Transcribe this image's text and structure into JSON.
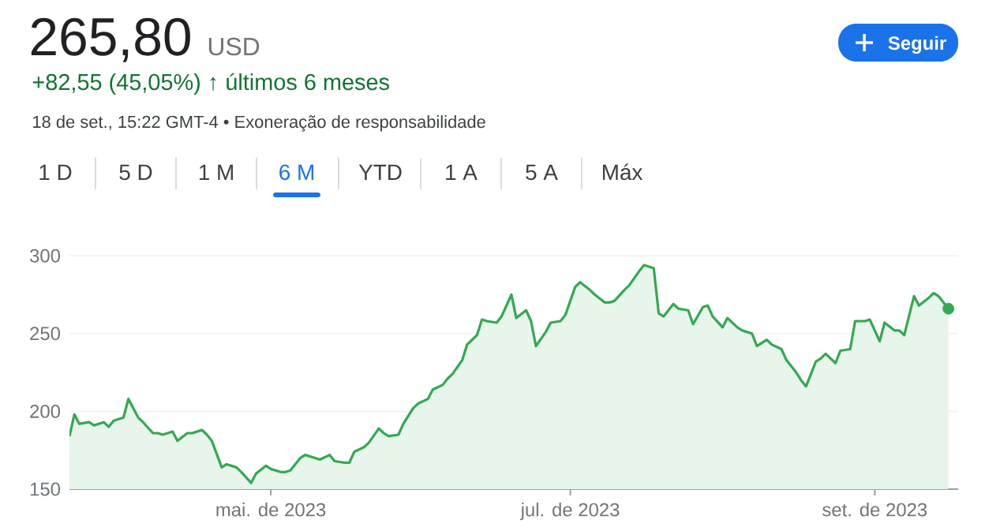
{
  "chart_data": {
    "type": "area",
    "title": "265,80",
    "subtitle": "+82,55 (45,05%) ↑ últimos 6 meses",
    "annotations": [
      "USD",
      "18 de set., 15:22 GMT-4 • Exoneração de responsabilidade",
      "Seguir",
      "1 D",
      "5 D",
      "1 M",
      "6 M",
      "YTD",
      "1 A",
      "5 A",
      "Máx"
    ],
    "xlim": [
      "2023-03-21",
      "2023-09-18"
    ],
    "xticks": [
      {
        "value": "2023-05-01",
        "label": "mai. de 2023"
      },
      {
        "value": "2023-07-01",
        "label": "jul. de 2023"
      },
      {
        "value": "2023-09-01",
        "label": "set. de 2023"
      }
    ],
    "ylim": [
      150,
      300
    ],
    "yticks": [
      150,
      200,
      250,
      300
    ],
    "grid": "y",
    "series": [
      {
        "color": "#34a853",
        "x": [
          "2023-03-21",
          "2023-03-22",
          "2023-03-23",
          "2023-03-25",
          "2023-03-26",
          "2023-03-28",
          "2023-03-29",
          "2023-03-30",
          "2023-04-01",
          "2023-04-02",
          "2023-04-04",
          "2023-04-05",
          "2023-04-07",
          "2023-04-08",
          "2023-04-09",
          "2023-04-11",
          "2023-04-12",
          "2023-04-14",
          "2023-04-15",
          "2023-04-17",
          "2023-04-18",
          "2023-04-19",
          "2023-04-21",
          "2023-04-22",
          "2023-04-24",
          "2023-04-25",
          "2023-04-27",
          "2023-04-28",
          "2023-04-30",
          "2023-05-01",
          "2023-05-03",
          "2023-05-04",
          "2023-05-05",
          "2023-05-07",
          "2023-05-08",
          "2023-05-10",
          "2023-05-11",
          "2023-05-13",
          "2023-05-14",
          "2023-05-16",
          "2023-05-17",
          "2023-05-18",
          "2023-05-20",
          "2023-05-21",
          "2023-05-23",
          "2023-05-24",
          "2023-05-25",
          "2023-05-27",
          "2023-05-28",
          "2023-05-30",
          "2023-05-31",
          "2023-06-02",
          "2023-06-03",
          "2023-06-05",
          "2023-06-06",
          "2023-06-07",
          "2023-06-09",
          "2023-06-10",
          "2023-06-12",
          "2023-06-13",
          "2023-06-14",
          "2023-06-16",
          "2023-06-17",
          "2023-06-19",
          "2023-06-20",
          "2023-06-22",
          "2023-06-23",
          "2023-06-24",
          "2023-06-26",
          "2023-06-27",
          "2023-06-29",
          "2023-06-30",
          "2023-07-02",
          "2023-07-03",
          "2023-07-05",
          "2023-07-06",
          "2023-07-08",
          "2023-07-09",
          "2023-07-10",
          "2023-07-12",
          "2023-07-13",
          "2023-07-15",
          "2023-07-16",
          "2023-07-18",
          "2023-07-19",
          "2023-07-20",
          "2023-07-22",
          "2023-07-23",
          "2023-07-25",
          "2023-07-26",
          "2023-07-28",
          "2023-07-29",
          "2023-07-30",
          "2023-08-01",
          "2023-08-02",
          "2023-08-04",
          "2023-08-05",
          "2023-08-07",
          "2023-08-08",
          "2023-08-10",
          "2023-08-11",
          "2023-08-13",
          "2023-08-14",
          "2023-08-16",
          "2023-08-17",
          "2023-08-18",
          "2023-08-20",
          "2023-08-21",
          "2023-08-22",
          "2023-08-24",
          "2023-08-25",
          "2023-08-27",
          "2023-08-28",
          "2023-08-30",
          "2023-08-31",
          "2023-09-02",
          "2023-09-03",
          "2023-09-05",
          "2023-09-06",
          "2023-09-07",
          "2023-09-09",
          "2023-09-10",
          "2023-09-12",
          "2023-09-13",
          "2023-09-14",
          "2023-09-16"
        ],
        "values": [
          184,
          198,
          192,
          193,
          191,
          193,
          190,
          194,
          196,
          208,
          196,
          193,
          186,
          186,
          185,
          187,
          181,
          186,
          186,
          188,
          185,
          181,
          164,
          166,
          164,
          161,
          154,
          160,
          165,
          163,
          161,
          161,
          162,
          170,
          172,
          170,
          169,
          172,
          168,
          167,
          167,
          174,
          177,
          180,
          189,
          186,
          184,
          185,
          192,
          202,
          205,
          208,
          214,
          217,
          221,
          224,
          233,
          243,
          249,
          259,
          258,
          257,
          261,
          275,
          260,
          265,
          258,
          242,
          251,
          257,
          258,
          262,
          280,
          283,
          278,
          275,
          270,
          270,
          271,
          278,
          281,
          290,
          294,
          292,
          263,
          261,
          269,
          266,
          265,
          256,
          267,
          268,
          261,
          254,
          260,
          254,
          252,
          250,
          242,
          246,
          243,
          240,
          233,
          225,
          220,
          216,
          232,
          234,
          237,
          231,
          239,
          240,
          258,
          258,
          259,
          245,
          257,
          252,
          252,
          249,
          274,
          268,
          273,
          276,
          274,
          266
        ]
      },
      {
        "type": "scatter",
        "color": "#34a853",
        "marker": "circle",
        "x": [
          "2023-09-16"
        ],
        "values": [
          266
        ]
      }
    ]
  }
}
